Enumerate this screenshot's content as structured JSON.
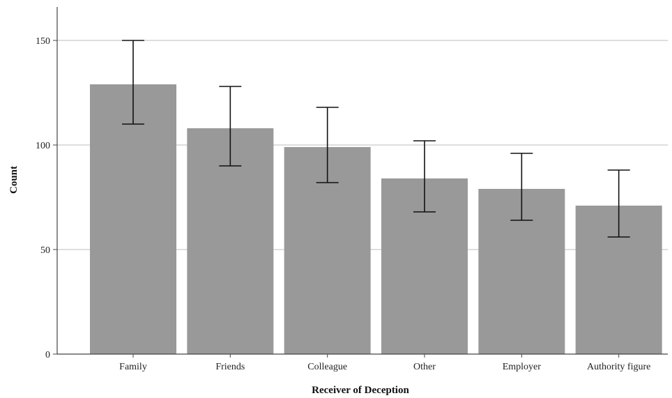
{
  "chart_data": {
    "type": "bar",
    "title": "",
    "xlabel": "Receiver of Deception",
    "ylabel": "Count",
    "categories": [
      "Family",
      "Friends",
      "Colleague",
      "Other",
      "Employer",
      "Authority figure"
    ],
    "values": [
      129,
      108,
      99,
      84,
      79,
      71
    ],
    "error_low": [
      110,
      90,
      82,
      68,
      64,
      56
    ],
    "error_high": [
      150,
      128,
      118,
      102,
      96,
      88
    ],
    "ylim": [
      0,
      166
    ],
    "yticks": [
      0,
      50,
      100,
      150
    ],
    "grid": true,
    "colors": {
      "bar": "#999999",
      "grid": "#bdbdbd",
      "axis": "#444444",
      "errorbar": "#111111"
    }
  }
}
